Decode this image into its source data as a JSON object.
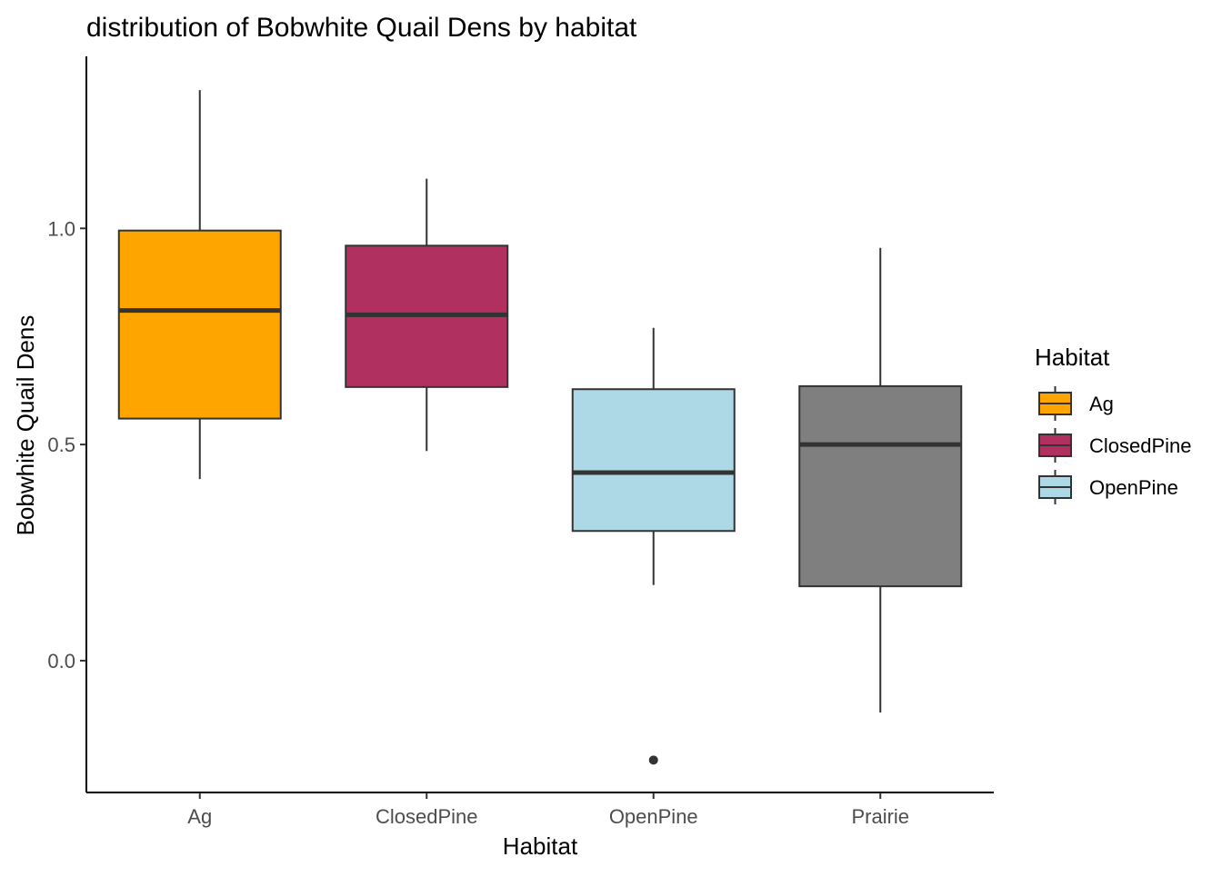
{
  "chart_data": {
    "type": "boxplot",
    "title": "distribution of Bobwhite Quail Dens by habitat",
    "xlabel": "Habitat",
    "ylabel": "Bobwhite Quail Dens",
    "categories": [
      "Ag",
      "ClosedPine",
      "OpenPine",
      "Prairie"
    ],
    "y_ticks": [
      {
        "value": 0.0,
        "label": "0.0"
      },
      {
        "value": 0.5,
        "label": "0.5"
      },
      {
        "value": 1.0,
        "label": "1.0"
      }
    ],
    "ylim": [
      -0.305,
      1.398
    ],
    "grid": false,
    "legend_position": "right",
    "legend": {
      "title": "Habitat",
      "entries": [
        {
          "label": "Ag",
          "color": "#FFA500"
        },
        {
          "label": "ClosedPine",
          "color": "#B03060"
        },
        {
          "label": "OpenPine",
          "color": "#ADD8E6"
        }
      ]
    },
    "series": [
      {
        "category": "Ag",
        "color": "#FFA500",
        "whisker_low": 0.42,
        "q1": 0.56,
        "median": 0.81,
        "q3": 0.995,
        "whisker_high": 1.32,
        "outliers": []
      },
      {
        "category": "ClosedPine",
        "color": "#B03060",
        "whisker_low": 0.485,
        "q1": 0.633,
        "median": 0.8,
        "q3": 0.96,
        "whisker_high": 1.115,
        "outliers": []
      },
      {
        "category": "OpenPine",
        "color": "#ADD8E6",
        "whisker_low": 0.175,
        "q1": 0.3,
        "median": 0.435,
        "q3": 0.628,
        "whisker_high": 0.77,
        "outliers": [
          -0.23
        ]
      },
      {
        "category": "Prairie",
        "color": "#7F7F7F",
        "whisker_low": -0.12,
        "q1": 0.172,
        "median": 0.5,
        "q3": 0.635,
        "whisker_high": 0.955,
        "outliers": []
      }
    ]
  }
}
